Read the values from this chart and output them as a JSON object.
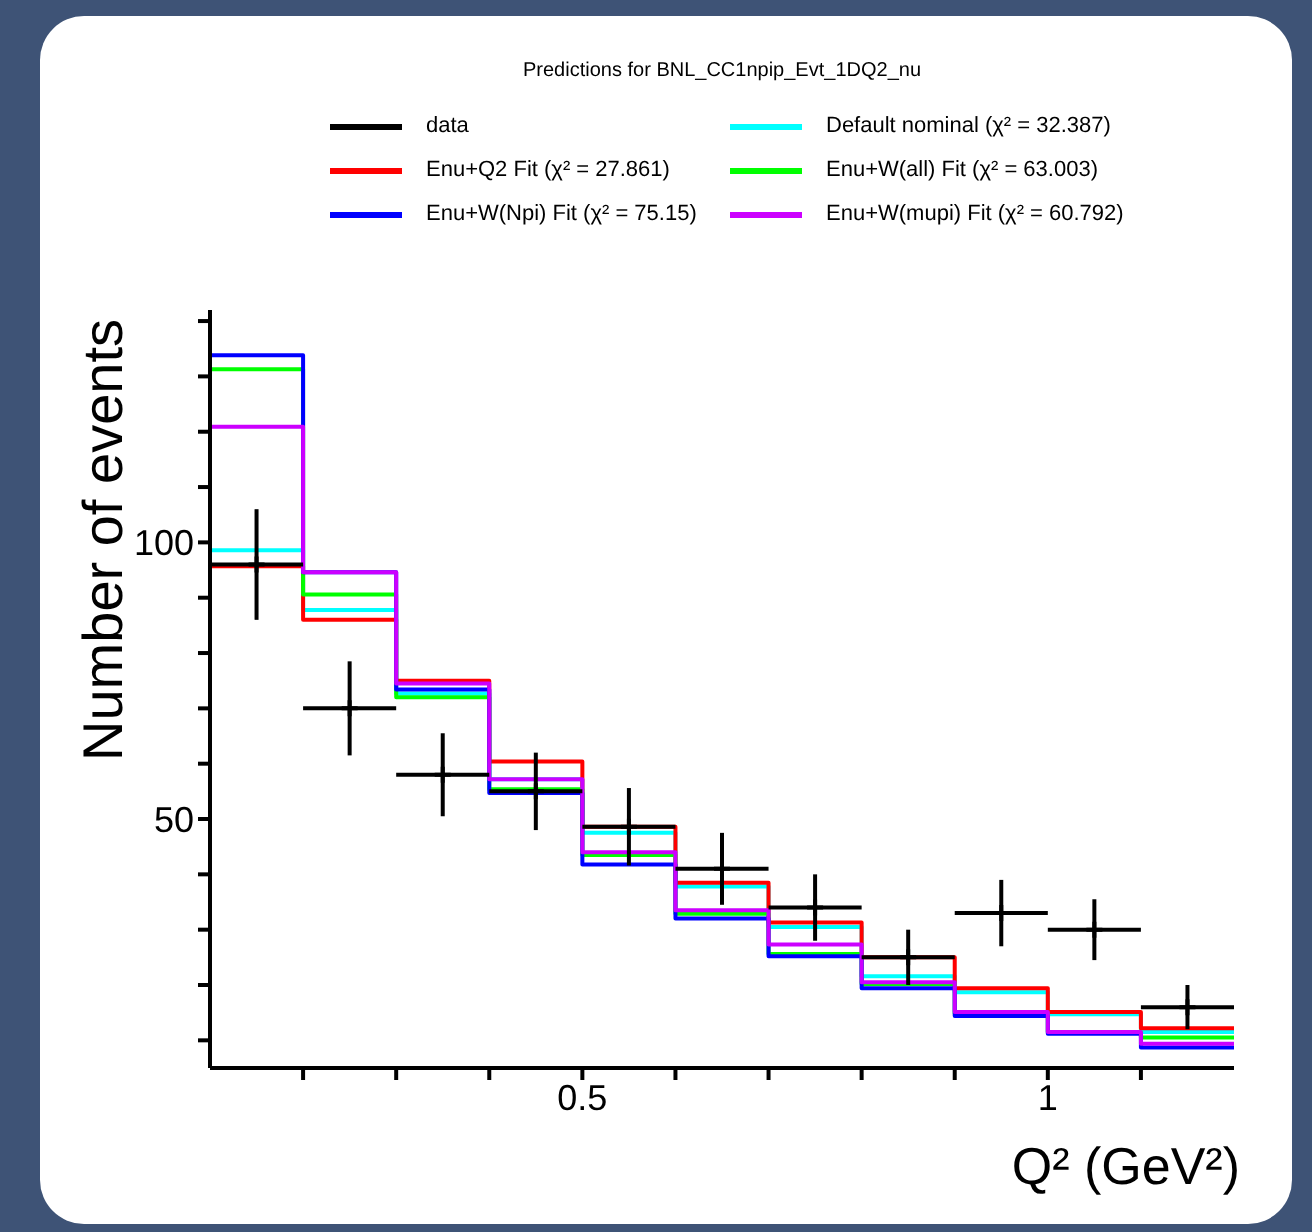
{
  "chart_data": {
    "type": "histogram",
    "title": "Predictions for BNL_CC1npip_Evt_1DQ2_nu",
    "xlabel": "Q² (GeV²)",
    "ylabel": "Number of events",
    "bins": [
      0.1,
      0.2,
      0.3,
      0.4,
      0.5,
      0.6,
      0.7,
      0.8,
      0.9,
      1.0,
      1.1,
      1.2
    ],
    "series": [
      {
        "name": "data",
        "type": "scatter",
        "color": "#000000",
        "marker": "cross",
        "x": [
          0.15,
          0.25,
          0.35,
          0.45,
          0.55,
          0.65,
          0.75,
          0.85,
          0.95,
          1.05,
          1.15
        ],
        "values": [
          96,
          70,
          58,
          55,
          48.6,
          41,
          34,
          25,
          33,
          30,
          16
        ],
        "errors": [
          10,
          8.5,
          7.5,
          7,
          7,
          6.5,
          6,
          5,
          6,
          5.5,
          4
        ],
        "xerrors": [
          0.05,
          0.05,
          0.05,
          0.05,
          0.05,
          0.05,
          0.05,
          0.05,
          0.05,
          0.05,
          0.05
        ]
      },
      {
        "name": "Default nominal (χ² = 32.387)",
        "color": "#00ffff",
        "values": [
          98.6,
          87.8,
          72.7,
          57.2,
          47.5,
          37.8,
          30.5,
          21.6,
          18.7,
          14.7,
          11.5
        ]
      },
      {
        "name": "Enu+Q2 Fit (χ² = 27.861)",
        "color": "#ff0000",
        "values": [
          95.7,
          86,
          75,
          60.4,
          48.6,
          38.5,
          31.3,
          25,
          19.4,
          15.1,
          12.2
        ]
      },
      {
        "name": "Enu+W(all) Fit (χ² = 63.003)",
        "color": "#00ff00",
        "values": [
          131.3,
          90.6,
          72,
          55.4,
          43.5,
          32.9,
          25.6,
          20.2,
          14.8,
          11.4,
          10.5
        ]
      },
      {
        "name": "Enu+W(Npi) Fit (χ² = 75.15)",
        "color": "#0000ff",
        "values": [
          133.8,
          94.6,
          73.4,
          54.7,
          41.8,
          32,
          25.2,
          19.4,
          14.4,
          11.2,
          8.7
        ]
      },
      {
        "name": "Enu+W(mupi) Fit (χ² = 60.792)",
        "color": "#cc00ff",
        "values": [
          120.9,
          94.6,
          74.5,
          57.2,
          44,
          33.5,
          27.3,
          20.5,
          15.1,
          11.5,
          9.4
        ]
      }
    ],
    "xlim": [
      0.1,
      1.2
    ],
    "xticks": [
      {
        "value": 0.2,
        "label": null
      },
      {
        "value": 0.3,
        "label": null
      },
      {
        "value": 0.4,
        "label": null
      },
      0.5,
      {
        "value": 0.6,
        "label": null
      },
      {
        "value": 0.7,
        "label": null
      },
      {
        "value": 0.8,
        "label": null
      },
      {
        "value": 0.9,
        "label": null
      },
      1,
      {
        "value": 1.1,
        "label": null
      }
    ],
    "ylim": [
      5,
      142
    ],
    "yticks": [
      {
        "value": 10,
        "label": null
      },
      {
        "value": 20,
        "label": null
      },
      {
        "value": 30,
        "label": null
      },
      {
        "value": 40,
        "label": null
      },
      50,
      {
        "value": 60,
        "label": null
      },
      {
        "value": 70,
        "label": null
      },
      {
        "value": 80,
        "label": null
      },
      {
        "value": 90,
        "label": null
      },
      100,
      {
        "value": 110,
        "label": null
      },
      {
        "value": 120,
        "label": null
      },
      {
        "value": 130,
        "label": null
      },
      {
        "value": 140,
        "label": null
      }
    ],
    "grid": false,
    "legend": "top"
  }
}
